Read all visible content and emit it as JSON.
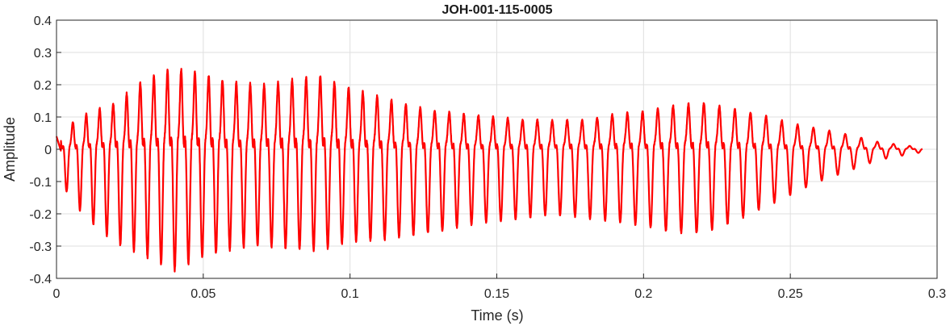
{
  "chart_data": {
    "type": "line",
    "title": "JOH-001-115-0005",
    "xlabel": "Time (s)",
    "ylabel": "Amplitude",
    "xlim": [
      0,
      0.3
    ],
    "ylim": [
      -0.4,
      0.4
    ],
    "xticks": [
      0,
      0.05,
      0.1,
      0.15,
      0.2,
      0.25,
      0.3
    ],
    "xtick_labels": [
      "0",
      "0.05",
      "0.1",
      "0.15",
      "0.2",
      "0.25",
      "0.3"
    ],
    "yticks": [
      0.4,
      0.3,
      0.2,
      0.1,
      0,
      -0.1,
      -0.2,
      -0.3,
      -0.4
    ],
    "ytick_labels": [
      "0.4",
      "0.3",
      "0.2",
      "0.1",
      "0",
      "-0.1",
      "-0.2",
      "-0.3",
      "-0.4"
    ],
    "grid": true,
    "legend": "none",
    "series_color": "#ff0000",
    "series": [
      {
        "x_start": 0,
        "x_end": 0.295,
        "description_of_shape": "",
        "envelope_x": [
          0,
          0.01,
          0.02,
          0.03,
          0.04,
          0.05,
          0.06,
          0.07,
          0.08,
          0.09,
          0.1,
          0.11,
          0.12,
          0.13,
          0.14,
          0.15,
          0.16,
          0.17,
          0.18,
          0.19,
          0.2,
          0.21,
          0.22,
          0.23,
          0.24,
          0.25,
          0.26,
          0.27,
          0.28,
          0.29,
          0.295
        ],
        "envelope_pos": [
          0.06,
          0.12,
          0.16,
          0.24,
          0.28,
          0.26,
          0.23,
          0.22,
          0.24,
          0.25,
          0.21,
          0.18,
          0.15,
          0.13,
          0.12,
          0.11,
          0.1,
          0.1,
          0.1,
          0.12,
          0.13,
          0.15,
          0.16,
          0.14,
          0.12,
          0.09,
          0.07,
          0.05,
          0.025,
          0.012,
          0.008
        ],
        "envelope_neg": [
          0.08,
          0.2,
          0.27,
          0.3,
          0.34,
          0.3,
          0.28,
          0.27,
          0.28,
          0.28,
          0.26,
          0.26,
          0.25,
          0.24,
          0.22,
          0.21,
          0.2,
          0.19,
          0.2,
          0.21,
          0.22,
          0.24,
          0.24,
          0.21,
          0.17,
          0.13,
          0.09,
          0.06,
          0.03,
          0.015,
          0.008
        ]
      }
    ]
  }
}
